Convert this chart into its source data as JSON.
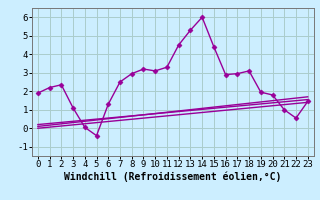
{
  "xlabel": "Windchill (Refroidissement éolien,°C)",
  "background_color": "#cceeff",
  "grid_color": "#aacccc",
  "line_color": "#990099",
  "ylim": [
    -1.5,
    6.5
  ],
  "xlim": [
    -0.5,
    23.5
  ],
  "yticks": [
    -1,
    0,
    1,
    2,
    3,
    4,
    5,
    6
  ],
  "xticks": [
    0,
    1,
    2,
    3,
    4,
    5,
    6,
    7,
    8,
    9,
    10,
    11,
    12,
    13,
    14,
    15,
    16,
    17,
    18,
    19,
    20,
    21,
    22,
    23
  ],
  "line1_x": [
    0,
    1,
    2,
    3,
    4,
    5,
    6,
    7,
    8,
    9,
    10,
    11,
    12,
    13,
    14,
    15,
    16,
    17,
    18,
    19,
    20,
    21,
    22,
    23
  ],
  "line1_y": [
    1.9,
    2.2,
    2.35,
    1.1,
    0.05,
    -0.4,
    1.3,
    2.5,
    2.95,
    3.2,
    3.1,
    3.3,
    4.5,
    5.3,
    6.0,
    4.4,
    2.9,
    2.95,
    3.1,
    1.95,
    1.8,
    1.0,
    0.55,
    1.45
  ],
  "line2_x": [
    0,
    23
  ],
  "line2_y": [
    0.1,
    1.7
  ],
  "line3_x": [
    0,
    23
  ],
  "line3_y": [
    0.2,
    1.55
  ],
  "line4_x": [
    0,
    23
  ],
  "line4_y": [
    0.0,
    1.4
  ],
  "tick_fontsize": 6.5,
  "label_fontsize": 7.0
}
